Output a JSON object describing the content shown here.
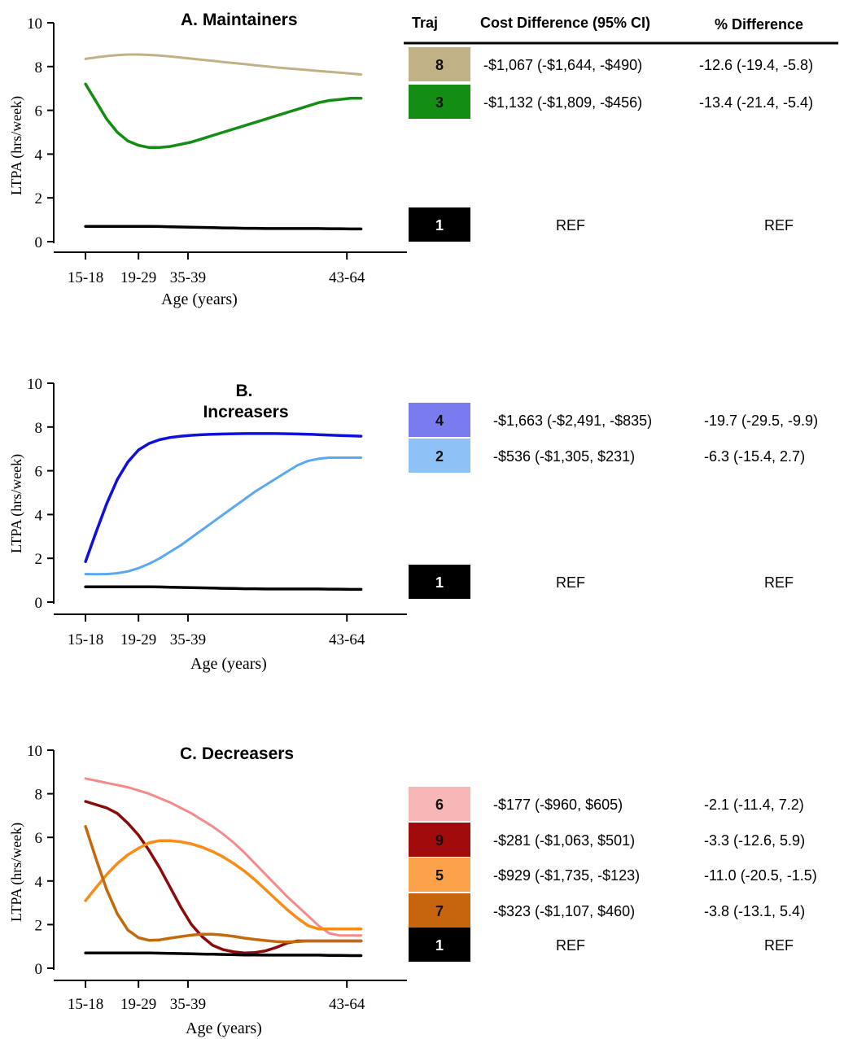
{
  "chart_data": [
    {
      "type": "line",
      "title": "A. Maintainers",
      "xlabel": "Age (years)",
      "ylabel": "LTPA (hrs/week)",
      "ylim": [
        0,
        10
      ],
      "yticks": [
        0,
        2,
        4,
        6,
        8,
        10
      ],
      "x": [
        16.5,
        18,
        19.5,
        21,
        22.5,
        24,
        25.5,
        27,
        28.5,
        30,
        31.5,
        33,
        34.5,
        36,
        37.5,
        39,
        40.5,
        42,
        43.5,
        45,
        46.5,
        48,
        49.5,
        51,
        52.5,
        54,
        55.5
      ],
      "xtick_labels": [
        {
          "x": 16.5,
          "label": "15-18"
        },
        {
          "x": 24,
          "label": "19-29"
        },
        {
          "x": 31,
          "label": "35-39"
        },
        {
          "x": 53.5,
          "label": "43-64"
        }
      ],
      "series": [
        {
          "traj": "8",
          "color": "#c0b286",
          "width": 3,
          "values": [
            8.35,
            8.42,
            8.48,
            8.52,
            8.55,
            8.55,
            8.53,
            8.5,
            8.46,
            8.41,
            8.36,
            8.31,
            8.26,
            8.21,
            8.16,
            8.11,
            8.06,
            8.01,
            7.96,
            7.92,
            7.88,
            7.84,
            7.8,
            7.76,
            7.72,
            7.68,
            7.64
          ]
        },
        {
          "traj": "3",
          "color": "#138d14",
          "width": 3.5,
          "values": [
            7.2,
            6.4,
            5.6,
            5.0,
            4.6,
            4.4,
            4.3,
            4.3,
            4.35,
            4.45,
            4.55,
            4.7,
            4.85,
            5.0,
            5.15,
            5.3,
            5.45,
            5.6,
            5.75,
            5.9,
            6.05,
            6.2,
            6.35,
            6.45,
            6.5,
            6.55,
            6.55
          ]
        },
        {
          "traj": "1",
          "color": "#000000",
          "width": 3.5,
          "values": [
            0.7,
            0.7,
            0.7,
            0.7,
            0.7,
            0.7,
            0.7,
            0.69,
            0.68,
            0.67,
            0.66,
            0.65,
            0.64,
            0.63,
            0.62,
            0.61,
            0.61,
            0.6,
            0.6,
            0.6,
            0.6,
            0.6,
            0.6,
            0.59,
            0.59,
            0.58,
            0.58
          ]
        }
      ],
      "table_rows": [
        {
          "traj": "8",
          "swatch": "#c0b286",
          "cost": "-$1,067 (-$1,644, -$490)",
          "pct": "-12.6 (-19.4, -5.8)"
        },
        {
          "traj": "3",
          "swatch": "#138d14",
          "cost": "-$1,132 (-$1,809, -$456)",
          "pct": "-13.4 (-21.4, -5.4)"
        },
        {
          "traj": "1",
          "swatch": "#000000",
          "cost": "REF",
          "pct": "REF"
        }
      ]
    },
    {
      "type": "line",
      "title": "B.\nIncreasers",
      "xlabel": "Age (years)",
      "ylabel": "LTPA (hrs/week)",
      "ylim": [
        0,
        10
      ],
      "yticks": [
        0,
        2,
        4,
        6,
        8,
        10
      ],
      "x": [
        16.5,
        18,
        19.5,
        21,
        22.5,
        24,
        25.5,
        27,
        28.5,
        30,
        31.5,
        33,
        34.5,
        36,
        37.5,
        39,
        40.5,
        42,
        43.5,
        45,
        46.5,
        48,
        49.5,
        51,
        52.5,
        54,
        55.5
      ],
      "xtick_labels": [
        {
          "x": 16.5,
          "label": "15-18"
        },
        {
          "x": 24,
          "label": "19-29"
        },
        {
          "x": 31,
          "label": "35-39"
        },
        {
          "x": 53.5,
          "label": "43-64"
        }
      ],
      "series": [
        {
          "traj": "4",
          "color": "#1010dd",
          "width": 3.5,
          "values": [
            1.85,
            3.2,
            4.5,
            5.6,
            6.4,
            6.95,
            7.25,
            7.42,
            7.52,
            7.58,
            7.62,
            7.65,
            7.67,
            7.68,
            7.69,
            7.7,
            7.7,
            7.7,
            7.7,
            7.69,
            7.68,
            7.67,
            7.65,
            7.63,
            7.61,
            7.6,
            7.58
          ]
        },
        {
          "traj": "2",
          "color": "#5aa7f3",
          "width": 3,
          "values": [
            1.28,
            1.27,
            1.28,
            1.32,
            1.4,
            1.55,
            1.75,
            2.0,
            2.3,
            2.6,
            2.95,
            3.3,
            3.65,
            4.0,
            4.35,
            4.7,
            5.05,
            5.35,
            5.65,
            5.95,
            6.25,
            6.45,
            6.55,
            6.6,
            6.6,
            6.6,
            6.6
          ]
        },
        {
          "traj": "1",
          "color": "#000000",
          "width": 3.5,
          "values": [
            0.7,
            0.7,
            0.7,
            0.7,
            0.7,
            0.7,
            0.7,
            0.69,
            0.68,
            0.67,
            0.66,
            0.65,
            0.64,
            0.63,
            0.62,
            0.61,
            0.61,
            0.6,
            0.6,
            0.6,
            0.6,
            0.6,
            0.6,
            0.59,
            0.59,
            0.58,
            0.58
          ]
        }
      ],
      "table_rows": [
        {
          "traj": "4",
          "swatch": "#7b7bf0",
          "cost": "-$1,663 (-$2,491, -$835)",
          "pct": "-19.7 (-29.5, -9.9)"
        },
        {
          "traj": "2",
          "swatch": "#8ec2f7",
          "cost": "-$536 (-$1,305, $231)",
          "pct": "-6.3 (-15.4, 2.7)"
        },
        {
          "traj": "1",
          "swatch": "#000000",
          "cost": "REF",
          "pct": "REF"
        }
      ]
    },
    {
      "type": "line",
      "title": "C. Decreasers",
      "xlabel": "Age (years)",
      "ylabel": "LTPA (hrs/week)",
      "ylim": [
        0,
        10
      ],
      "yticks": [
        0,
        2,
        4,
        6,
        8,
        10
      ],
      "x": [
        16.5,
        18,
        19.5,
        21,
        22.5,
        24,
        25.5,
        27,
        28.5,
        30,
        31.5,
        33,
        34.5,
        36,
        37.5,
        39,
        40.5,
        42,
        43.5,
        45,
        46.5,
        48,
        49.5,
        51,
        52.5,
        54,
        55.5
      ],
      "xtick_labels": [
        {
          "x": 16.5,
          "label": "15-18"
        },
        {
          "x": 24,
          "label": "19-29"
        },
        {
          "x": 31,
          "label": "35-39"
        },
        {
          "x": 53.5,
          "label": "43-64"
        }
      ],
      "series": [
        {
          "traj": "6",
          "color": "#f58a8a",
          "width": 3,
          "values": [
            8.7,
            8.6,
            8.5,
            8.4,
            8.3,
            8.15,
            8.0,
            7.8,
            7.6,
            7.35,
            7.1,
            6.8,
            6.5,
            6.15,
            5.75,
            5.3,
            4.8,
            4.3,
            3.8,
            3.3,
            2.85,
            2.4,
            1.95,
            1.6,
            1.5,
            1.5,
            1.5
          ]
        },
        {
          "traj": "9",
          "color": "#8b0a0a",
          "width": 3.5,
          "values": [
            7.65,
            7.5,
            7.35,
            7.1,
            6.65,
            6.1,
            5.4,
            4.6,
            3.7,
            2.8,
            2.0,
            1.45,
            1.05,
            0.85,
            0.75,
            0.7,
            0.72,
            0.8,
            0.95,
            1.15,
            1.25,
            1.25,
            1.25,
            1.25,
            1.25,
            1.25,
            1.25
          ]
        },
        {
          "traj": "5",
          "color": "#f98b17",
          "width": 3.5,
          "values": [
            3.1,
            3.7,
            4.3,
            4.8,
            5.2,
            5.5,
            5.75,
            5.85,
            5.85,
            5.8,
            5.7,
            5.55,
            5.35,
            5.1,
            4.8,
            4.45,
            4.05,
            3.6,
            3.15,
            2.7,
            2.3,
            1.95,
            1.8,
            1.8,
            1.8,
            1.8,
            1.8
          ]
        },
        {
          "traj": "7",
          "color": "#c36a0c",
          "width": 3.5,
          "values": [
            6.5,
            5.0,
            3.6,
            2.5,
            1.75,
            1.4,
            1.28,
            1.3,
            1.38,
            1.45,
            1.52,
            1.56,
            1.56,
            1.52,
            1.46,
            1.38,
            1.32,
            1.27,
            1.22,
            1.2,
            1.22,
            1.25,
            1.25,
            1.25,
            1.25,
            1.25,
            1.25
          ]
        },
        {
          "traj": "1",
          "color": "#000000",
          "width": 3.5,
          "values": [
            0.7,
            0.7,
            0.7,
            0.7,
            0.7,
            0.7,
            0.7,
            0.69,
            0.68,
            0.67,
            0.66,
            0.65,
            0.64,
            0.63,
            0.62,
            0.61,
            0.61,
            0.6,
            0.6,
            0.6,
            0.6,
            0.6,
            0.6,
            0.59,
            0.59,
            0.58,
            0.58
          ]
        }
      ],
      "table_rows": [
        {
          "traj": "6",
          "swatch": "#f7b7b7",
          "cost": "-$177 (-$960, $605)",
          "pct": "-2.1 (-11.4, 7.2)"
        },
        {
          "traj": "9",
          "swatch": "#a10b0b",
          "cost": "-$281 (-$1,063, $501)",
          "pct": "-3.3 (-12.6, 5.9)"
        },
        {
          "traj": "5",
          "swatch": "#fba24a",
          "cost": "-$929 (-$1,735, -$123)",
          "pct": "-11.0 (-20.5, -1.5)"
        },
        {
          "traj": "7",
          "swatch": "#c6650d",
          "cost": "-$323 (-$1,107, $460)",
          "pct": "-3.8 (-13.1, 5.4)"
        },
        {
          "traj": "1",
          "swatch": "#000000",
          "cost": "REF",
          "pct": "REF"
        }
      ]
    }
  ],
  "table_header": {
    "traj": "Traj",
    "cost": "Cost Difference (95% CI)",
    "pct": "% Difference"
  }
}
